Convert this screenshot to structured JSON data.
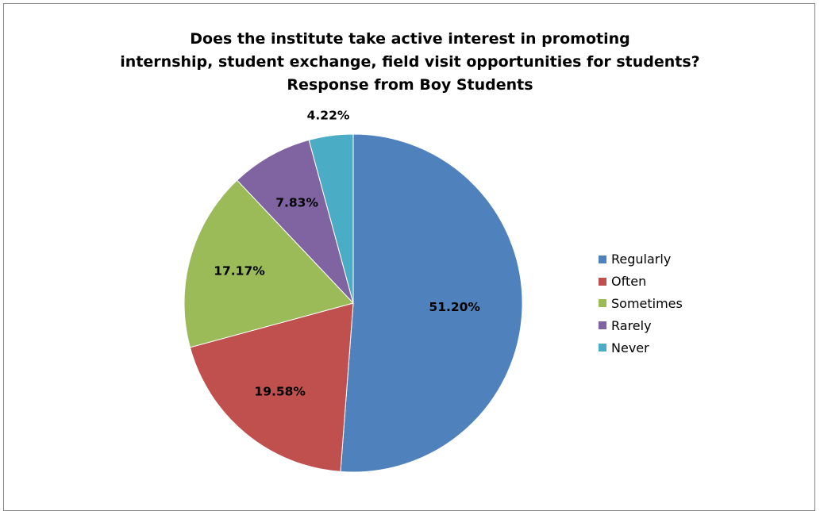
{
  "chart_data": {
    "type": "pie",
    "title_lines": [
      "Does the institute take active interest in promoting",
      "internship, student exchange, field visit opportunities for students?",
      "Response from Boy Students"
    ],
    "legend_position": "right",
    "slices": [
      {
        "name": "Regularly",
        "value": 51.2,
        "label": "51.20%",
        "color": "#4F81BD"
      },
      {
        "name": "Often",
        "value": 19.58,
        "label": "19.58%",
        "color": "#C0504D"
      },
      {
        "name": "Sometimes",
        "value": 17.17,
        "label": "17.17%",
        "color": "#9BBB59"
      },
      {
        "name": "Rarely",
        "value": 7.83,
        "label": "7.83%",
        "color": "#8064A2"
      },
      {
        "name": "Never",
        "value": 4.22,
        "label": "4.22%",
        "color": "#4BACC6"
      }
    ]
  }
}
